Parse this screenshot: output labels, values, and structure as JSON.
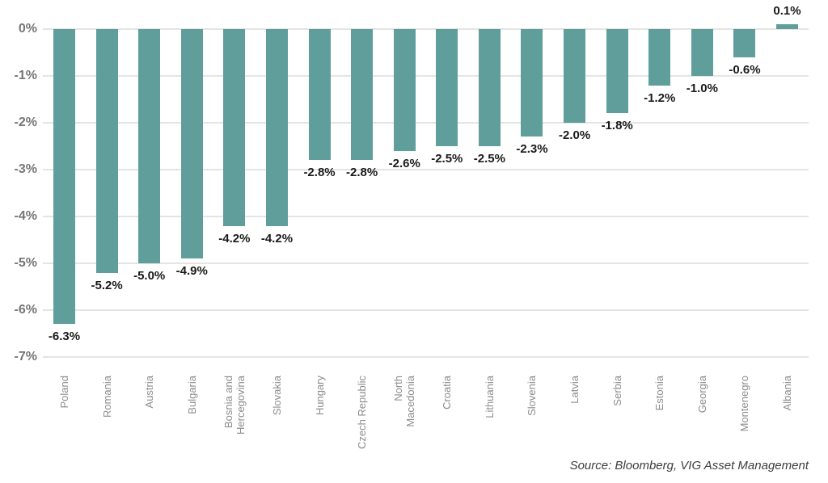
{
  "chart_data": {
    "type": "bar",
    "categories": [
      "Poland",
      "Romania",
      "Austria",
      "Bulgaria",
      "Bosnia and\nHercegovina",
      "Slovakia",
      "Hungary",
      "Czech Republic",
      "North\nMacedonia",
      "Croatia",
      "Lithuania",
      "Slovenia",
      "Latvia",
      "Serbia",
      "Estonia",
      "Georgia",
      "Montenegro",
      "Albania"
    ],
    "values": [
      -6.3,
      -5.2,
      -5.0,
      -4.9,
      -4.2,
      -4.2,
      -2.8,
      -2.8,
      -2.6,
      -2.5,
      -2.5,
      -2.3,
      -2.0,
      -1.8,
      -1.2,
      -1.0,
      -0.6,
      0.1
    ],
    "data_labels": [
      "-6.3%",
      "-5.2%",
      "-5.0%",
      "-4.9%",
      "-4.2%",
      "-4.2%",
      "-2.8%",
      "-2.8%",
      "-2.6%",
      "-2.5%",
      "-2.5%",
      "-2.3%",
      "-2.0%",
      "-1.8%",
      "-1.2%",
      "-1.0%",
      "-0.6%",
      "0.1%"
    ],
    "y_ticks": [
      "0%",
      "-1%",
      "-2%",
      "-3%",
      "-4%",
      "-5%",
      "-6%",
      "-7%"
    ],
    "ylim": [
      -7,
      0.5
    ],
    "grid": true,
    "legend": "none",
    "title": "",
    "xlabel": "",
    "ylabel": "",
    "bar_color": "#5f9e9b",
    "source_note": "Source: Bloomberg, VIG Asset Management"
  }
}
